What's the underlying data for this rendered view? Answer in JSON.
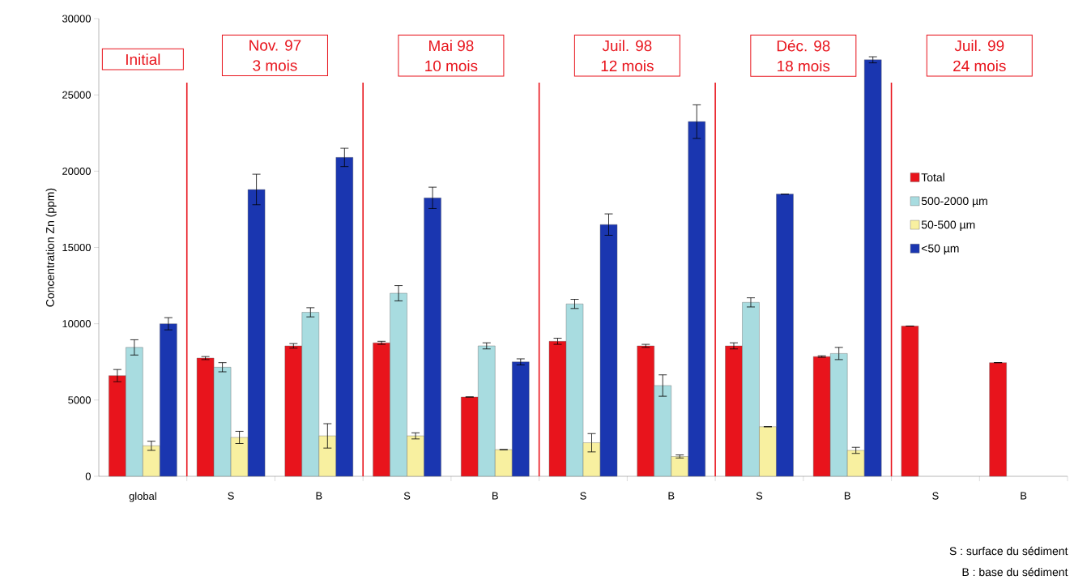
{
  "chart_data": {
    "type": "bar",
    "ylabel": "Concentration Zn (ppm)",
    "categories": [
      "global",
      "S",
      "B",
      "S",
      "B",
      "S",
      "B",
      "S",
      "B",
      "S",
      "B"
    ],
    "series": [
      {
        "name": "Total",
        "color": "#e8141c",
        "values": [
          6600,
          7750,
          8550,
          8750,
          5200,
          8850,
          8550,
          8550,
          7850,
          9850,
          7450
        ],
        "errors": [
          400,
          100,
          150,
          100,
          null,
          200,
          100,
          200,
          50,
          null,
          null
        ]
      },
      {
        "name": "500-2000 µm",
        "color": "#a8dce0",
        "values": [
          8450,
          7150,
          10750,
          12000,
          8550,
          11300,
          5950,
          11400,
          8050,
          null,
          null
        ],
        "errors": [
          500,
          300,
          300,
          500,
          200,
          300,
          700,
          300,
          400,
          null,
          null
        ]
      },
      {
        "name": "50-500 µm",
        "color": "#f8f0a0",
        "values": [
          2000,
          2550,
          2650,
          2650,
          1750,
          2200,
          1300,
          3250,
          1700,
          null,
          null
        ],
        "errors": [
          300,
          400,
          800,
          200,
          null,
          600,
          100,
          null,
          200,
          null,
          null
        ]
      },
      {
        "name": "<50 µm",
        "color": "#1a36b0",
        "values": [
          10000,
          18800,
          20900,
          18250,
          7500,
          16500,
          23250,
          18500,
          27300,
          null,
          null
        ],
        "errors": [
          400,
          1000,
          600,
          700,
          200,
          700,
          1100,
          null,
          200,
          null,
          null
        ]
      }
    ],
    "ylim": [
      0,
      30000
    ],
    "yticks": [
      0,
      5000,
      10000,
      15000,
      20000,
      25000,
      30000
    ],
    "legend": "right",
    "annotations": [
      "Initial",
      "Nov. 97",
      "3 mois",
      "Mai 98",
      "10 mois",
      "Juil. 98",
      "12 mois",
      "Déc. 98",
      "18 mois",
      "Juil. 99",
      "24 mois",
      "S : surface du sédiment",
      "B : base du sédiment"
    ]
  }
}
